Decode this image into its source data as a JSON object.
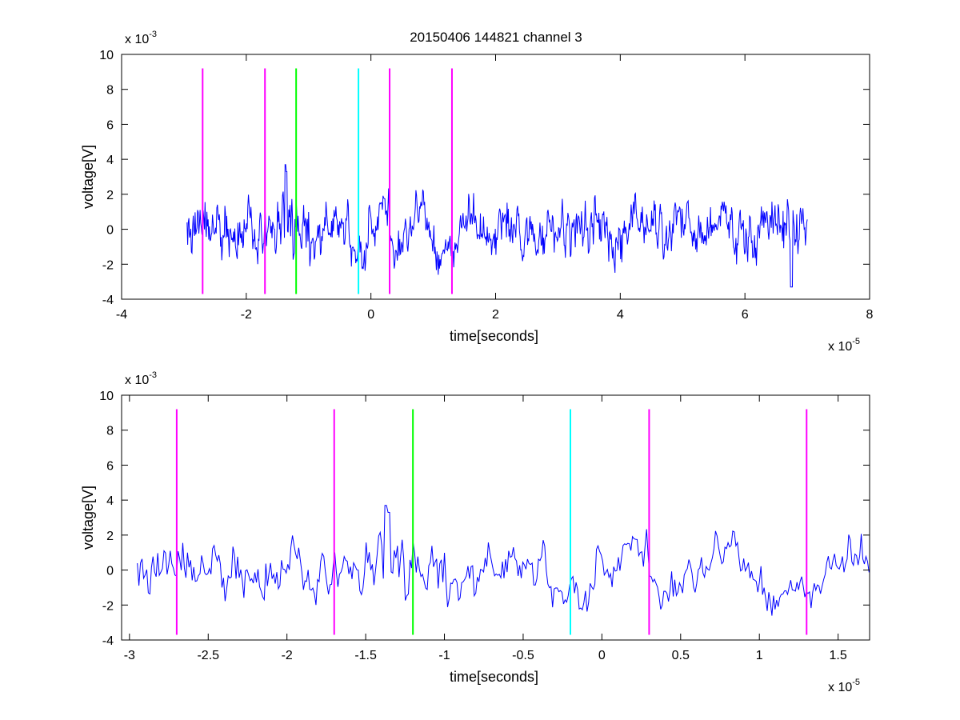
{
  "figure": {
    "title": "20150406 144821 channel 3"
  },
  "chart_data": [
    {
      "type": "line",
      "xlabel": "time[seconds]",
      "ylabel": "voltage[V]",
      "x_exponent": "x 10",
      "x_exponent_power": "-5",
      "y_exponent": "x 10",
      "y_exponent_power": "-3",
      "xlim": [
        -4,
        8
      ],
      "ylim": [
        -4,
        10
      ],
      "x_ticks": [
        "-4",
        "-2",
        "0",
        "2",
        "4",
        "6",
        "8"
      ],
      "y_ticks": [
        "-4",
        "-2",
        "0",
        "2",
        "4",
        "6",
        "8",
        "10"
      ],
      "grid": false,
      "series_color": "#0000ff",
      "signal_range": [
        -2.95,
        7.0
      ],
      "markers": [
        {
          "x": -2.7,
          "color": "#ff00ff"
        },
        {
          "x": -1.7,
          "color": "#ff00ff"
        },
        {
          "x": -1.2,
          "color": "#00ff00"
        },
        {
          "x": -0.2,
          "color": "#00ffff"
        },
        {
          "x": 0.3,
          "color": "#ff00ff"
        },
        {
          "x": 1.3,
          "color": "#ff00ff"
        }
      ],
      "marker_ylim": [
        -3.7,
        9.2
      ]
    },
    {
      "type": "line",
      "xlabel": "time[seconds]",
      "ylabel": "voltage[V]",
      "x_exponent": "x 10",
      "x_exponent_power": "-5",
      "y_exponent": "x 10",
      "y_exponent_power": "-3",
      "xlim": [
        -3.05,
        1.7
      ],
      "ylim": [
        -4,
        10
      ],
      "x_ticks": [
        "-3",
        "-2.5",
        "-2",
        "-1.5",
        "-1",
        "-0.5",
        "0",
        "0.5",
        "1",
        "1.5"
      ],
      "y_ticks": [
        "-4",
        "-2",
        "0",
        "2",
        "4",
        "6",
        "8",
        "10"
      ],
      "grid": false,
      "series_color": "#0000ff",
      "signal_range": [
        -2.95,
        1.7
      ],
      "markers": [
        {
          "x": -2.7,
          "color": "#ff00ff"
        },
        {
          "x": -1.7,
          "color": "#ff00ff"
        },
        {
          "x": -1.2,
          "color": "#00ff00"
        },
        {
          "x": -0.2,
          "color": "#00ffff"
        },
        {
          "x": 0.3,
          "color": "#ff00ff"
        },
        {
          "x": 1.3,
          "color": "#ff00ff"
        }
      ],
      "marker_ylim": [
        -3.7,
        9.2
      ]
    }
  ]
}
